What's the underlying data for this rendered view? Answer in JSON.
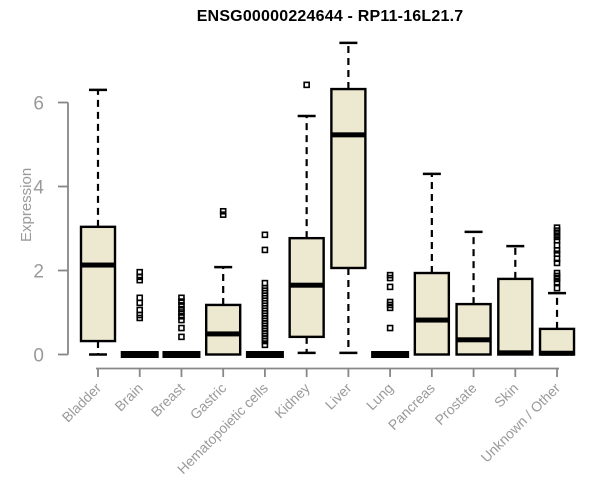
{
  "chart_data": {
    "type": "boxplot",
    "title": "ENSG00000224644 - RP11-16L21.7",
    "ylabel": "Expression",
    "xlabel": "",
    "yticks": [
      0,
      2,
      4,
      6
    ],
    "ylim": [
      0,
      7.6
    ],
    "grid": false,
    "legend": "none",
    "colors": {
      "box_fill": "#EDE8D0",
      "box_border": "#000000",
      "median": "#000000",
      "whisker": "#000000",
      "axis_line": "#878787",
      "axis_text": "#9a9a9a",
      "title_text": "#000000",
      "background": "#ffffff"
    },
    "categories": [
      "Bladder",
      "Brain",
      "Breast",
      "Gastric",
      "Hematopoietic cells",
      "Kidney",
      "Liver",
      "Lung",
      "Pancreas",
      "Prostate",
      "Skin",
      "Unknown / Other"
    ],
    "series": [
      {
        "name": "Bladder",
        "whisker_low": 0.0,
        "q1": 0.32,
        "median": 2.13,
        "q3": 3.04,
        "whisker_high": 6.3,
        "outliers": []
      },
      {
        "name": "Brain",
        "whisker_low": 0.0,
        "q1": 0.0,
        "median": 0.0,
        "q3": 0.0,
        "whisker_high": 0.0,
        "outliers": [
          1.96,
          1.85,
          1.77,
          1.35,
          1.23,
          1.06,
          0.94,
          0.87
        ]
      },
      {
        "name": "Breast",
        "whisker_low": 0.0,
        "q1": 0.0,
        "median": 0.0,
        "q3": 0.0,
        "whisker_high": 0.0,
        "outliers": [
          1.35,
          1.26,
          1.17,
          1.08,
          1.0,
          0.91,
          0.82,
          0.63,
          0.42
        ]
      },
      {
        "name": "Gastric",
        "whisker_low": 0.0,
        "q1": 0.0,
        "median": 0.49,
        "q3": 1.18,
        "whisker_high": 2.08,
        "outliers": [
          3.41,
          3.33
        ]
      },
      {
        "name": "Hematopoietic cells",
        "whisker_low": 0.0,
        "q1": 0.0,
        "median": 0.0,
        "q3": 0.0,
        "whisker_high": 0.0,
        "outliers": [
          2.85,
          2.49,
          1.7,
          1.58,
          1.52,
          1.46,
          1.4,
          1.34,
          1.28,
          1.22,
          1.16,
          1.1,
          1.04,
          0.98,
          0.92,
          0.86,
          0.8,
          0.74,
          0.68,
          0.62,
          0.56,
          0.5,
          0.44,
          0.38,
          0.32,
          0.23
        ]
      },
      {
        "name": "Kidney",
        "whisker_low": 0.04,
        "q1": 0.42,
        "median": 1.65,
        "q3": 2.77,
        "whisker_high": 5.68,
        "outliers": [
          6.42
        ]
      },
      {
        "name": "Liver",
        "whisker_low": 0.04,
        "q1": 2.06,
        "median": 5.23,
        "q3": 6.32,
        "whisker_high": 7.42,
        "outliers": []
      },
      {
        "name": "Lung",
        "whisker_low": 0.0,
        "q1": 0.0,
        "median": 0.0,
        "q3": 0.0,
        "whisker_high": 0.0,
        "outliers": [
          1.89,
          1.82,
          1.61,
          1.25,
          1.18,
          1.11,
          0.63
        ]
      },
      {
        "name": "Pancreas",
        "whisker_low": 0.0,
        "q1": 0.0,
        "median": 0.82,
        "q3": 1.94,
        "whisker_high": 4.3,
        "outliers": []
      },
      {
        "name": "Prostate",
        "whisker_low": 0.0,
        "q1": 0.0,
        "median": 0.35,
        "q3": 1.2,
        "whisker_high": 2.92,
        "outliers": []
      },
      {
        "name": "Skin",
        "whisker_low": 0.0,
        "q1": 0.0,
        "median": 0.04,
        "q3": 1.8,
        "whisker_high": 2.58,
        "outliers": []
      },
      {
        "name": "Unknown / Other",
        "whisker_low": 0.0,
        "q1": 0.0,
        "median": 0.03,
        "q3": 0.61,
        "whisker_high": 1.46,
        "outliers": [
          3.02,
          2.95,
          2.88,
          2.8,
          2.72,
          2.6,
          2.48,
          2.4,
          2.28,
          2.18,
          1.94,
          1.87,
          1.8,
          1.72,
          1.58
        ]
      }
    ]
  }
}
